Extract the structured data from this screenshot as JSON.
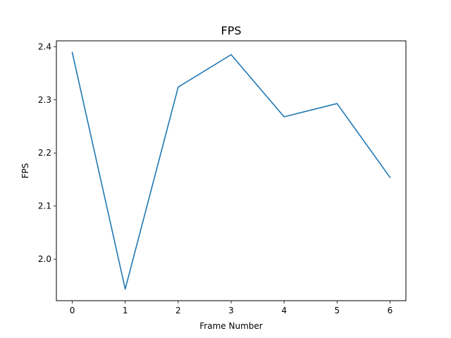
{
  "chart_data": {
    "type": "line",
    "title": "FPS",
    "xlabel": "Frame Number",
    "ylabel": "FPS",
    "x": [
      0,
      1,
      2,
      3,
      4,
      5,
      6
    ],
    "series": [
      {
        "values": [
          2.389,
          1.944,
          2.324,
          2.385,
          2.268,
          2.293,
          2.154
        ]
      }
    ],
    "x_ticks": [
      "0",
      "1",
      "2",
      "3",
      "4",
      "5",
      "6"
    ],
    "y_ticks": [
      "2.0",
      "2.1",
      "2.2",
      "2.3",
      "2.4"
    ],
    "xlim": [
      -0.3,
      6.3
    ],
    "ylim": [
      1.922,
      2.411
    ],
    "grid": false,
    "line_color": "#1f77b4"
  }
}
